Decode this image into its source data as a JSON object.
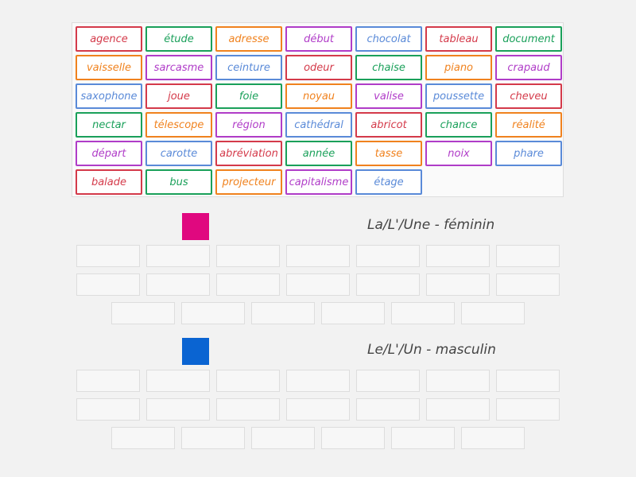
{
  "tiles": [
    {
      "text": "agence",
      "color": "#d43a4a"
    },
    {
      "text": "étude",
      "color": "#1aa05a"
    },
    {
      "text": "adresse",
      "color": "#f0821e"
    },
    {
      "text": "début",
      "color": "#b03cc8"
    },
    {
      "text": "chocolat",
      "color": "#5a8ad8"
    },
    {
      "text": "tableau",
      "color": "#d43a4a"
    },
    {
      "text": "document",
      "color": "#1aa05a"
    },
    {
      "text": "vaisselle",
      "color": "#f0821e"
    },
    {
      "text": "sarcasme",
      "color": "#b03cc8"
    },
    {
      "text": "ceinture",
      "color": "#5a8ad8"
    },
    {
      "text": "odeur",
      "color": "#d43a4a"
    },
    {
      "text": "chaise",
      "color": "#1aa05a"
    },
    {
      "text": "piano",
      "color": "#f0821e"
    },
    {
      "text": "crapaud",
      "color": "#b03cc8"
    },
    {
      "text": "saxophone",
      "color": "#5a8ad8"
    },
    {
      "text": "joue",
      "color": "#d43a4a"
    },
    {
      "text": "foie",
      "color": "#1aa05a"
    },
    {
      "text": "noyau",
      "color": "#f0821e"
    },
    {
      "text": "valise",
      "color": "#b03cc8"
    },
    {
      "text": "poussette",
      "color": "#5a8ad8"
    },
    {
      "text": "cheveu",
      "color": "#d43a4a"
    },
    {
      "text": "nectar",
      "color": "#1aa05a"
    },
    {
      "text": "télescope",
      "color": "#f0821e"
    },
    {
      "text": "région",
      "color": "#b03cc8"
    },
    {
      "text": "cathédral",
      "color": "#5a8ad8"
    },
    {
      "text": "abricot",
      "color": "#d43a4a"
    },
    {
      "text": "chance",
      "color": "#1aa05a"
    },
    {
      "text": "réalité",
      "color": "#f0821e"
    },
    {
      "text": "départ",
      "color": "#b03cc8"
    },
    {
      "text": "carotte",
      "color": "#5a8ad8"
    },
    {
      "text": "abréviation",
      "color": "#d43a4a"
    },
    {
      "text": "année",
      "color": "#1aa05a"
    },
    {
      "text": "tasse",
      "color": "#f0821e"
    },
    {
      "text": "noix",
      "color": "#b03cc8"
    },
    {
      "text": "phare",
      "color": "#5a8ad8"
    },
    {
      "text": "balade",
      "color": "#d43a4a"
    },
    {
      "text": "bus",
      "color": "#1aa05a"
    },
    {
      "text": "projecteur",
      "color": "#f0821e"
    },
    {
      "text": "capitalisme",
      "color": "#b03cc8"
    },
    {
      "text": "étage",
      "color": "#5a8ad8"
    }
  ],
  "groups": [
    {
      "title": "La/L'/Une - féminin",
      "color": "#e0087f"
    },
    {
      "title": "Le/L'/Un - masculin",
      "color": "#0a64d2"
    }
  ]
}
